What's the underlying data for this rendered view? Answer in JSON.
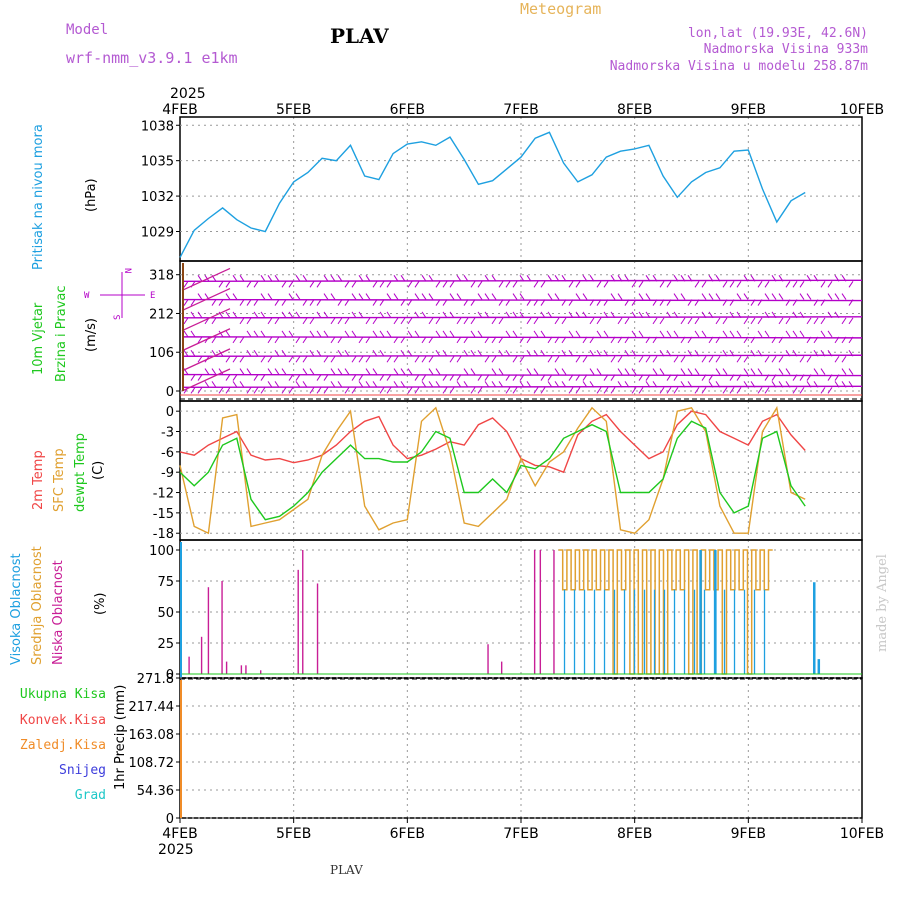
{
  "header": {
    "model_label": "Model",
    "model_name": "wrf-nmm_v3.9.1 e1km",
    "station": "PLAV",
    "product": "Meteogram",
    "lonlat": "lon,lat (19.93E, 42.6N)",
    "altitude": "Nadmorska Visina 933m",
    "model_altitude": "Nadmorska Visina u modelu 258.87m",
    "year_top": "2025",
    "year_bottom": "2025",
    "footer_station": "PLAV",
    "credit": "made by Angel"
  },
  "colors": {
    "pressure": "#1ea0e0",
    "wind": "#b400c8",
    "temp2m": "#f04646",
    "sfc_temp": "#e0a030",
    "dewpoint": "#1ec81e",
    "cloud_high": "#1ea0e0",
    "cloud_mid": "#e0a030",
    "cloud_low": "#c81e96",
    "ukupna": "#1ec81e",
    "konvek": "#f04646",
    "zaledj": "#f08c28",
    "snijeg": "#3c3cdc",
    "grad": "#1ec8c8",
    "model_label": "#b45ad2",
    "product": "#e6b45a",
    "grid": "#999999"
  },
  "chart_data": [
    {
      "id": "pressure",
      "type": "line",
      "ylabel_colored": "Pritisak na nivou mora",
      "ylabel_unit": "(hPa)",
      "x_ticks": [
        "4FEB",
        "5FEB",
        "6FEB",
        "7FEB",
        "8FEB",
        "9FEB",
        "10FEB"
      ],
      "y_ticks": [
        1029,
        1032,
        1035,
        1038
      ],
      "ylim": [
        1026.5,
        1038.7
      ],
      "x_day_start": 0,
      "x_day_end": 6,
      "x_step_days": 0.125,
      "series": [
        {
          "color_key": "pressure",
          "values": [
            1026.8,
            1029.1,
            1030.1,
            1031.0,
            1030.0,
            1029.3,
            1029.0,
            1031.4,
            1033.2,
            1034.0,
            1035.2,
            1035.0,
            1036.3,
            1033.7,
            1033.4,
            1035.6,
            1036.4,
            1036.6,
            1036.3,
            1037.0,
            1035.1,
            1033.0,
            1033.3,
            1034.3,
            1035.3,
            1036.9,
            1037.4,
            1034.8,
            1033.2,
            1033.8,
            1035.3,
            1035.8,
            1036.0,
            1036.3,
            1033.7,
            1031.9,
            1033.2,
            1034.0,
            1034.4,
            1035.8,
            1035.9,
            1032.6,
            1029.8,
            1031.6,
            1032.3
          ]
        }
      ]
    },
    {
      "id": "wind",
      "type": "barbs",
      "ylabel_colored": "10m Vjetar",
      "ylabel_colored_2": "Brzina i Pravac",
      "ylabel_unit": "(m/s)",
      "y_ticks": [
        0,
        106,
        212,
        318
      ],
      "compass_n": "N",
      "compass_s": "S",
      "compass_w": "W",
      "compass_e": "E",
      "rows": [
        10,
        45,
        95,
        148,
        200,
        250,
        300
      ]
    },
    {
      "id": "temperature",
      "type": "line",
      "ylabel_a": "2m Temp",
      "ylabel_b": "SFC Temp",
      "ylabel_c": "dewpt Temp",
      "ylabel_unit": "(C)",
      "y_ticks": [
        0,
        -3,
        -6,
        -9,
        -12,
        -15,
        -18
      ],
      "ylim": [
        -19,
        1.5
      ],
      "x_day_start": 0,
      "x_day_end": 6,
      "x_step_days": 0.125,
      "series": [
        {
          "color_key": "temp2m",
          "values": [
            -6,
            -6.5,
            -5,
            -4,
            -3,
            -6.5,
            -7.2,
            -7,
            -7.6,
            -7.2,
            -6.5,
            -5,
            -3,
            -1.5,
            -0.8,
            -5,
            -7,
            -6.5,
            -5.6,
            -4.5,
            -5,
            -2,
            -1,
            -3,
            -7,
            -8,
            -8.2,
            -9,
            -3.5,
            -1.5,
            -0.5,
            -3,
            -5,
            -7,
            -6,
            -2,
            0,
            -0.5,
            -3,
            -4,
            -5,
            -1.5,
            -0.5,
            -3.5,
            -5.8
          ]
        },
        {
          "color_key": "sfc_temp",
          "values": [
            -8,
            -17,
            -18,
            -1,
            -0.5,
            -17,
            -16.5,
            -16,
            -14.5,
            -13,
            -6.5,
            -3,
            0,
            -14,
            -17.5,
            -16.5,
            -16,
            -1.5,
            0.5,
            -6,
            -16.5,
            -17,
            -15,
            -13,
            -7,
            -11,
            -7.5,
            -6,
            -2.5,
            0.5,
            -1.5,
            -17.5,
            -18,
            -16,
            -10,
            0,
            0.5,
            -3,
            -14,
            -18,
            -18,
            -3,
            0.5,
            -12,
            -13
          ]
        },
        {
          "color_key": "dewpoint",
          "values": [
            -9,
            -11,
            -9,
            -5,
            -4,
            -13,
            -16,
            -15.5,
            -14,
            -12,
            -9,
            -7,
            -5,
            -7,
            -7,
            -7.5,
            -7.5,
            -6,
            -3,
            -4,
            -12,
            -12,
            -10,
            -12,
            -8,
            -8.5,
            -7,
            -4,
            -3,
            -2,
            -3,
            -12,
            -12,
            -12,
            -10,
            -4,
            -1.5,
            -2.5,
            -12,
            -15,
            -14,
            -4,
            -3,
            -11,
            -14
          ]
        }
      ]
    },
    {
      "id": "clouds",
      "type": "bar",
      "ylabel_a": "Visoka Oblacnost",
      "ylabel_b": "Srednja Oblacnost",
      "ylabel_c": "Niska Oblacnost",
      "ylabel_unit": "(%)",
      "y_ticks": [
        0,
        25,
        50,
        75,
        100
      ],
      "ylim": [
        0,
        100
      ],
      "low_bars": [
        {
          "day": 0.08,
          "value": 14
        },
        {
          "day": 0.19,
          "value": 30
        },
        {
          "day": 0.25,
          "value": 70
        },
        {
          "day": 0.37,
          "value": 75
        },
        {
          "day": 0.41,
          "value": 10
        },
        {
          "day": 0.54,
          "value": 7
        },
        {
          "day": 0.58,
          "value": 7
        },
        {
          "day": 0.71,
          "value": 3
        },
        {
          "day": 1.04,
          "value": 84
        },
        {
          "day": 1.08,
          "value": 100
        },
        {
          "day": 1.21,
          "value": 73
        },
        {
          "day": 2.71,
          "value": 24
        },
        {
          "day": 2.83,
          "value": 10
        },
        {
          "day": 3.12,
          "value": 100
        },
        {
          "day": 3.17,
          "value": 100
        },
        {
          "day": 3.29,
          "value": 100
        }
      ],
      "high_bars": [
        {
          "day": 4.58,
          "value": 100
        },
        {
          "day": 4.71,
          "value": 100
        },
        {
          "day": 5.58,
          "value": 74
        },
        {
          "day": 5.62,
          "value": 12
        }
      ],
      "mid_block": {
        "start": 3.33,
        "end": 5.2,
        "value": 100
      }
    },
    {
      "id": "precip",
      "type": "bar",
      "legend": [
        "Ukupna Kisa",
        "Konvek.Kisa",
        "Zaledj.Kisa",
        "Snijeg",
        "Grad"
      ],
      "ylabel_unit": "1hr Precip (mm)",
      "y_ticks": [
        0,
        54.36,
        108.72,
        163.08,
        217.44,
        271.8
      ],
      "ylim": [
        0,
        271.8
      ],
      "x_ticks": [
        "4FEB",
        "5FEB",
        "6FEB",
        "7FEB",
        "8FEB",
        "9FEB",
        "10FEB"
      ]
    }
  ]
}
